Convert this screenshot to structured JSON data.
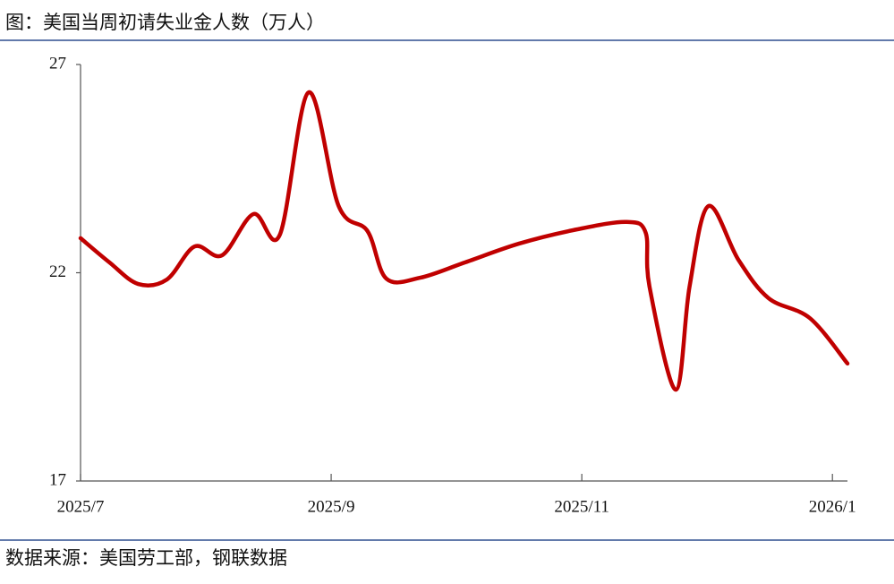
{
  "chart_data": {
    "type": "line",
    "title": "图：美国当周初请失业金人数（万人）",
    "source": "数据来源：美国劳工部，钢联数据",
    "x": [
      7.0,
      7.23,
      7.46,
      7.69,
      7.91,
      8.13,
      8.38,
      8.59,
      8.82,
      9.06,
      9.29,
      9.44,
      9.71,
      10.07,
      10.5,
      10.96,
      11.36,
      11.51,
      11.54,
      11.75,
      11.86,
      12.01,
      12.25,
      12.49,
      12.82,
      13.12
    ],
    "series": [
      {
        "color": "#c00000",
        "values": [
          22.83,
          22.25,
          21.73,
          21.84,
          22.63,
          22.42,
          23.41,
          22.91,
          26.33,
          23.6,
          23.0,
          21.86,
          21.88,
          22.25,
          22.7,
          23.04,
          23.22,
          22.96,
          21.67,
          19.19,
          21.67,
          23.6,
          22.31,
          21.39,
          20.91,
          19.82
        ]
      }
    ],
    "xlim": [
      7,
      13.12
    ],
    "xticks": [
      {
        "value": 7,
        "label": "2025/7"
      },
      {
        "value": 9,
        "label": "2025/9"
      },
      {
        "value": 11,
        "label": "2025/11"
      },
      {
        "value": 13,
        "label": "2026/1"
      }
    ],
    "ylim": [
      17,
      27
    ],
    "yticks": [
      17,
      22,
      27
    ],
    "grid": false
  }
}
